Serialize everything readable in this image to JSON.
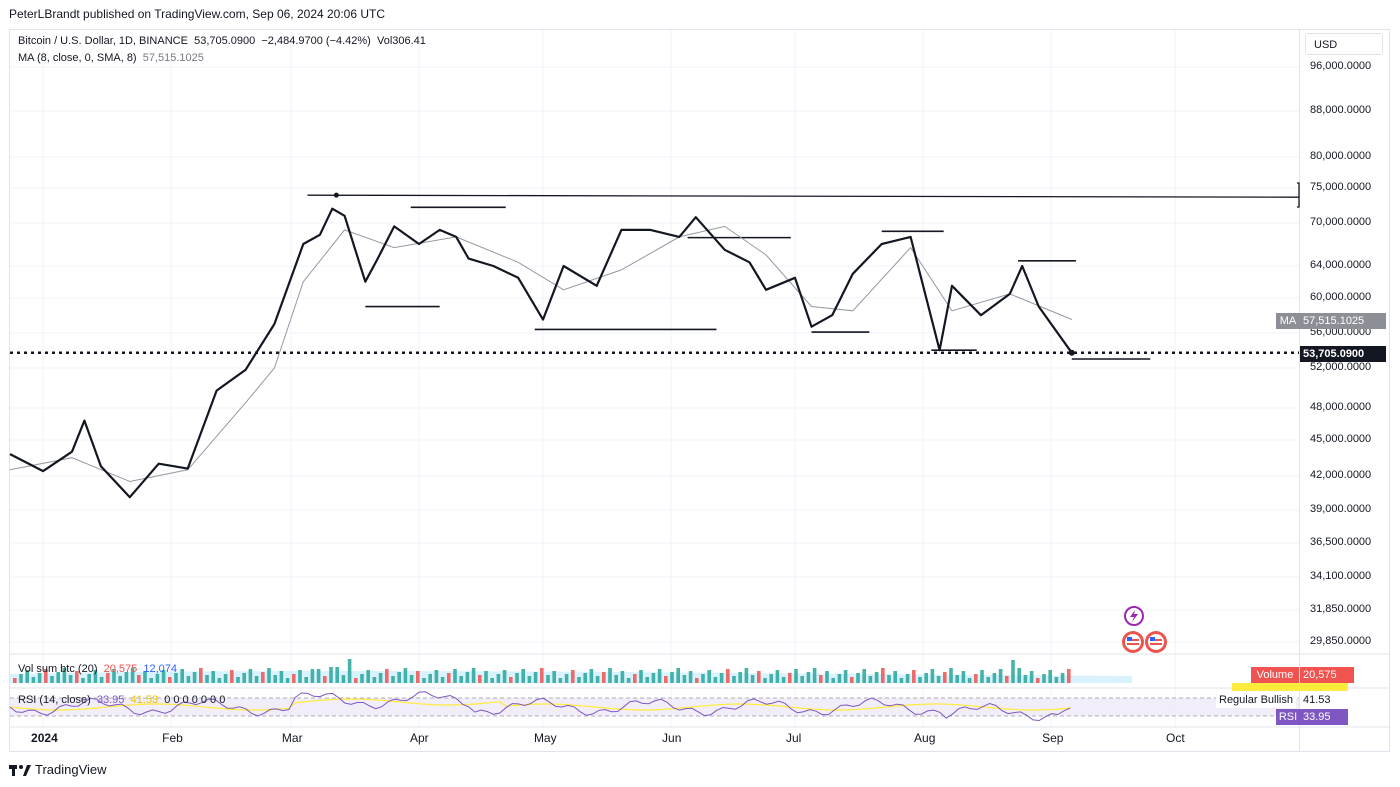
{
  "header": {
    "publisher": "PeterLBrandt published on TradingView.com, Sep 06, 2024 20:06 UTC"
  },
  "legend": {
    "symbol": "Bitcoin / U.S. Dollar, 1D, BINANCE",
    "close": "53,705.0900",
    "change": "−2,484.9700 (−4.42%)",
    "vol": "Vol306.41",
    "ma_label": "MA (8, close, 0, SMA, 8)",
    "ma_value": "57,515.1025"
  },
  "price_axis": {
    "currency": "USD",
    "ticks": [
      "96,000.0000",
      "88,000.0000",
      "80,000.0000",
      "75,000.0000",
      "70,000.0000",
      "64,000.0000",
      "60,000.0000",
      "56,000.0000",
      "52,000.0000",
      "48,000.0000",
      "45,000.0000",
      "42,000.0000",
      "39,000.0000",
      "36,500.0000",
      "34,100.0000",
      "31,850.0000",
      "29,850.0000"
    ],
    "ma_tag_label": "MA",
    "ma_tag_value": "57,515.1025",
    "last_price_tag": "53,705.0900"
  },
  "time_axis": {
    "labels": [
      "2024",
      "Feb",
      "Mar",
      "Apr",
      "May",
      "Jun",
      "Jul",
      "Aug",
      "Sep",
      "Oct"
    ]
  },
  "volume_pane": {
    "label": "Vol sum btc (20)",
    "value_red": "20,575",
    "value_blue": "12,074",
    "tag_label": "Volume",
    "tag_value": "20,575"
  },
  "rsi_pane": {
    "label": "RSI (14, close)",
    "value": "33.95",
    "value_yellow": "41.53",
    "zeros": "0 0 0 0 0 0 0",
    "regular_bullish_label": "Regular Bullish",
    "regular_bullish_value": "41.53",
    "tag_label": "RSI",
    "tag_value": "33.95"
  },
  "footer": {
    "brand": "TradingView"
  },
  "colors": {
    "price_line": "#131722",
    "ma_line": "#9598a1",
    "volume_up": "#26a69a",
    "volume_down": "#ef5350",
    "rsi_line": "#7e57c2",
    "rsi_signal": "#ffeb3b",
    "rsi_band": "#ede7f6",
    "volume_tag": "#f05350"
  },
  "chart_data": {
    "type": "line",
    "title": "Bitcoin / U.S. Dollar, 1D, BINANCE",
    "scale": "log",
    "ylim": [
      29000,
      100000
    ],
    "x_range": [
      "2023-12-24",
      "2024-10-31"
    ],
    "series": [
      {
        "name": "Bitcoin / U.S. Dollar",
        "x": [
          "2023-12-24",
          "2024-01-01",
          "2024-01-08",
          "2024-01-11",
          "2024-01-15",
          "2024-01-22",
          "2024-01-29",
          "2024-02-05",
          "2024-02-12",
          "2024-02-19",
          "2024-02-26",
          "2024-03-04",
          "2024-03-08",
          "2024-03-11",
          "2024-03-14",
          "2024-03-19",
          "2024-03-22",
          "2024-03-26",
          "2024-04-01",
          "2024-04-06",
          "2024-04-10",
          "2024-04-13",
          "2024-04-19",
          "2024-04-25",
          "2024-05-01",
          "2024-05-06",
          "2024-05-14",
          "2024-05-20",
          "2024-05-27",
          "2024-06-03",
          "2024-06-07",
          "2024-06-14",
          "2024-06-20",
          "2024-06-24",
          "2024-07-01",
          "2024-07-05",
          "2024-07-10",
          "2024-07-15",
          "2024-07-22",
          "2024-07-29",
          "2024-08-05",
          "2024-08-08",
          "2024-08-15",
          "2024-08-22",
          "2024-08-25",
          "2024-08-29",
          "2024-09-06"
        ],
        "values": [
          43800,
          42400,
          44000,
          46800,
          42800,
          40100,
          43000,
          42600,
          49700,
          51800,
          57000,
          67000,
          68300,
          72000,
          71000,
          62000,
          65000,
          69500,
          67000,
          69000,
          68000,
          65000,
          64000,
          62500,
          57500,
          64000,
          61500,
          69000,
          69000,
          68000,
          70800,
          66200,
          64500,
          61000,
          62500,
          56700,
          58000,
          63000,
          67000,
          68000,
          54000,
          61500,
          58000,
          60500,
          64000,
          59000,
          53705
        ]
      },
      {
        "name": "MA (8, close, 0, SMA, 8)",
        "x": [
          "2023-12-24",
          "2024-01-08",
          "2024-01-22",
          "2024-02-05",
          "2024-02-19",
          "2024-02-26",
          "2024-03-04",
          "2024-03-14",
          "2024-03-26",
          "2024-04-10",
          "2024-04-25",
          "2024-05-06",
          "2024-05-20",
          "2024-06-03",
          "2024-06-14",
          "2024-06-24",
          "2024-07-05",
          "2024-07-15",
          "2024-07-29",
          "2024-08-08",
          "2024-08-22",
          "2024-09-06"
        ],
        "values": [
          42500,
          43500,
          41500,
          42500,
          48500,
          52000,
          62000,
          69000,
          66500,
          68000,
          64500,
          61000,
          63500,
          68000,
          69500,
          65500,
          59000,
          58500,
          66500,
          58500,
          60500,
          57515
        ]
      }
    ],
    "annotations": {
      "resistance": 73800,
      "last_close": 53705,
      "support_marks": [
        59000,
        56400,
        56100,
        54000,
        53000
      ]
    },
    "volume": {
      "label": "Vol sum btc (20)",
      "last": 20575,
      "average": 12074
    },
    "rsi": {
      "label": "RSI (14, close)",
      "value": 33.95,
      "signal": 41.53
    }
  }
}
